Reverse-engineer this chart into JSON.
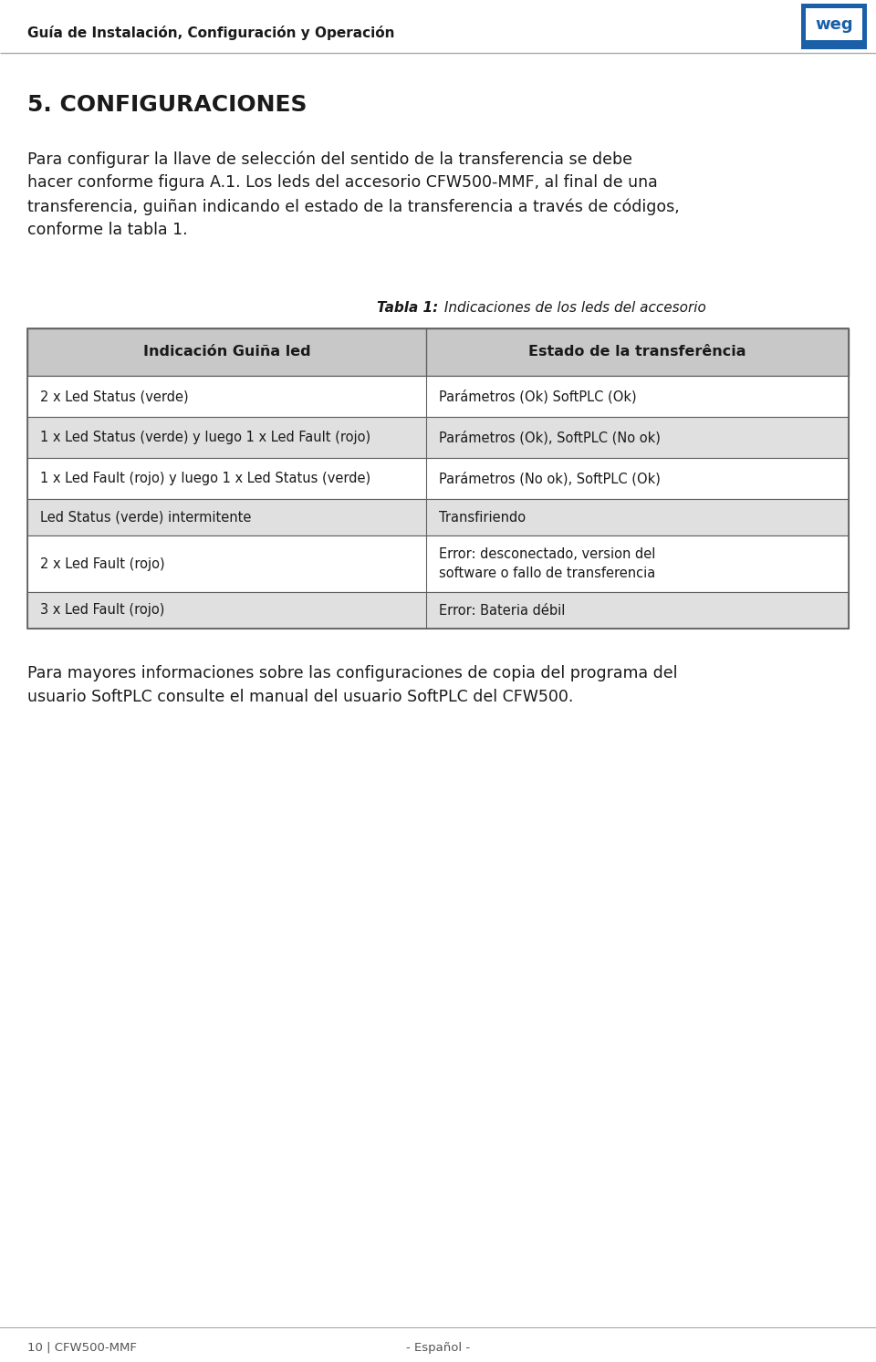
{
  "page_title": "Guía de Instalación, Configuración y Operación",
  "section_title": "5. CONFIGURACIONES",
  "body_text": "Para configurar la llave de selección del sentido de la transferencia se debe\nhacer conforme figura A.1. Los leds del accesorio CFW500-MMF, al final de una\ntransferencia, guiñan indicando el estado de la transferencia a través de códigos,\nconforme la tabla 1.",
  "table_title_bold": "Tabla 1:",
  "table_title_italic": " Indicaciones de los leds del accesorio",
  "table_header": [
    "Indicación Guiña led",
    "Estado de la transferência"
  ],
  "table_rows": [
    [
      "2 x Led Status (verde)",
      "Parámetros (Ok) SoftPLC (Ok)"
    ],
    [
      "1 x Led Status (verde) y luego 1 x Led Fault (rojo)",
      "Parámetros (Ok), SoftPLC (No ok)"
    ],
    [
      "1 x Led Fault (rojo) y luego 1 x Led Status (verde)",
      "Parámetros (No ok), SoftPLC (Ok)"
    ],
    [
      "Led Status (verde) intermitente",
      "Transfiriendo"
    ],
    [
      "2 x Led Fault (rojo)",
      "Error: desconectado, version del\nsoftware o fallo de transferencia"
    ],
    [
      "3 x Led Fault (rojo)",
      "Error: Bateria débil"
    ]
  ],
  "row_colors": [
    "#ffffff",
    "#e0e0e0",
    "#ffffff",
    "#e0e0e0",
    "#ffffff",
    "#e0e0e0"
  ],
  "header_bg": "#c8c8c8",
  "footer_left": "10 | CFW500-MMF",
  "footer_center": "- Español -",
  "body_text_3": "Para mayores informaciones sobre las configuraciones de copia del programa del\nusuario SoftPLC consulte el manual del usuario SoftPLC del CFW500.",
  "bg_color": "#ffffff",
  "text_color": "#1a1a1a",
  "border_color": "#606060",
  "weg_blue": "#1a5fa8",
  "header_line_color": "#aaaaaa",
  "footer_line_color": "#aaaaaa"
}
